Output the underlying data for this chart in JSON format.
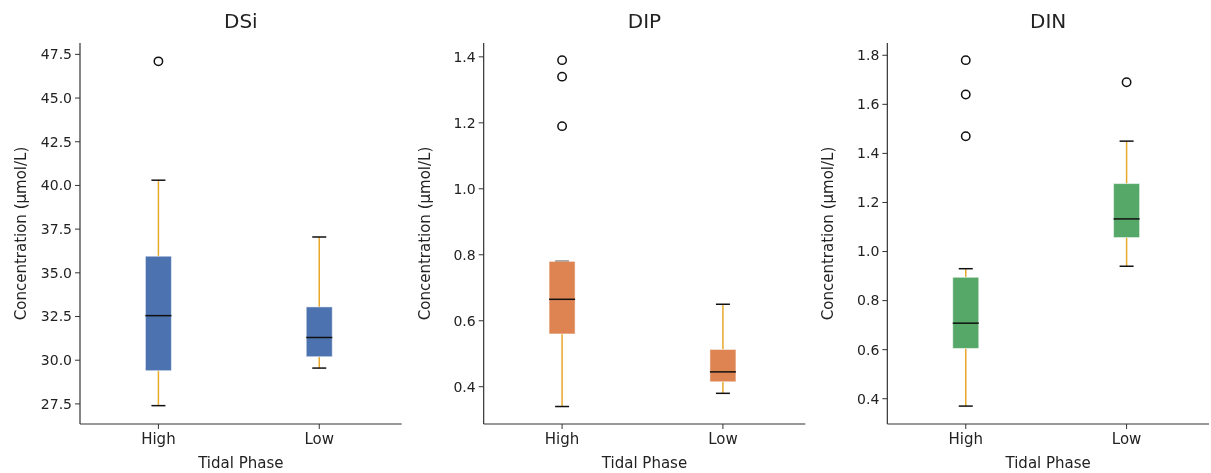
{
  "chart_data": [
    {
      "type": "box",
      "title": "DSi",
      "xlabel": "Tidal Phase",
      "ylabel": "Concentration (µmol/L)",
      "categories": [
        "High",
        "Low"
      ],
      "ylim": [
        26.35,
        48.15
      ],
      "yticks": [
        27.5,
        {
          "value": 30,
          "label": "30.0"
        },
        32.5,
        {
          "value": 35,
          "label": "35.0"
        },
        37.5,
        {
          "value": 40,
          "label": "40.0"
        },
        42.5,
        {
          "value": 45,
          "label": "45.0"
        },
        47.5
      ],
      "series": [
        {
          "color": "#4c72b0",
          "boxes": [
            {
              "low": 27.4,
              "q1": 29.4,
              "median": 32.55,
              "q3": 35.95,
              "high": 40.3,
              "outliers": [
                47.1
              ]
            },
            {
              "low": 29.55,
              "q1": 30.2,
              "median": 31.3,
              "q3": 33.05,
              "high": 37.05
            }
          ]
        }
      ]
    },
    {
      "type": "box",
      "title": "DIP",
      "xlabel": "Tidal Phase",
      "ylabel": "Concentration (µmol/L)",
      "categories": [
        "High",
        "Low"
      ],
      "ylim": [
        0.287,
        1.442
      ],
      "yticks": [
        0.4,
        0.6,
        0.8,
        {
          "value": 1,
          "label": "1.0"
        },
        1.2,
        1.4
      ],
      "series": [
        {
          "color": "#dd8452",
          "boxes": [
            {
              "low": 0.34,
              "q1": 0.56,
              "median": 0.665,
              "q3": 0.78,
              "high": 0.78,
              "outliers": [
                1.19,
                1.34,
                1.39
              ]
            },
            {
              "low": 0.38,
              "q1": 0.415,
              "median": 0.445,
              "q3": 0.513,
              "high": 0.65
            }
          ]
        }
      ]
    },
    {
      "type": "box",
      "title": "DIN",
      "xlabel": "Tidal Phase",
      "ylabel": "Concentration (µmol/L)",
      "categories": [
        "High",
        "Low"
      ],
      "ylim": [
        0.297,
        1.85
      ],
      "yticks": [
        0.4,
        0.6,
        0.8,
        {
          "value": 1,
          "label": "1.0"
        },
        1.2,
        1.4,
        1.6,
        1.8
      ],
      "series": [
        {
          "color": "#55a868",
          "boxes": [
            {
              "low": 0.37,
              "q1": 0.605,
              "median": 0.708,
              "q3": 0.895,
              "high": 0.93,
              "outliers": [
                1.47,
                1.64,
                1.78
              ]
            },
            {
              "low": 0.94,
              "q1": 1.057,
              "median": 1.133,
              "q3": 1.277,
              "high": 1.45,
              "outliers": [
                1.69
              ]
            }
          ]
        }
      ]
    }
  ]
}
